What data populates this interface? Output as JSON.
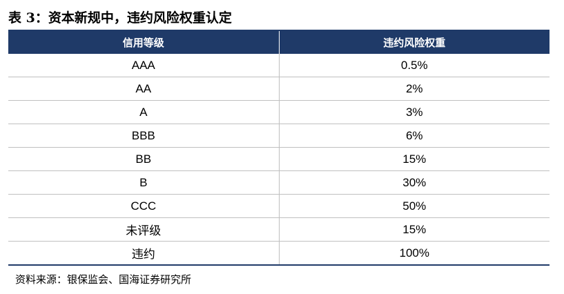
{
  "title": "表 3：资本新规中，违约风险权重认定",
  "table": {
    "headers": [
      "信用等级",
      "违约风险权重"
    ],
    "rows": [
      [
        "AAA",
        "0.5%"
      ],
      [
        "AA",
        "2%"
      ],
      [
        "A",
        "3%"
      ],
      [
        "BBB",
        "6%"
      ],
      [
        "BB",
        "15%"
      ],
      [
        "B",
        "30%"
      ],
      [
        "CCC",
        "50%"
      ],
      [
        "未评级",
        "15%"
      ],
      [
        "违约",
        "100%"
      ]
    ]
  },
  "source": "资料来源：银保监会、国海证券研究所",
  "colors": {
    "header_bg": "#1f3a68",
    "header_text": "#ffffff",
    "grid_line": "#bfbfbf"
  }
}
